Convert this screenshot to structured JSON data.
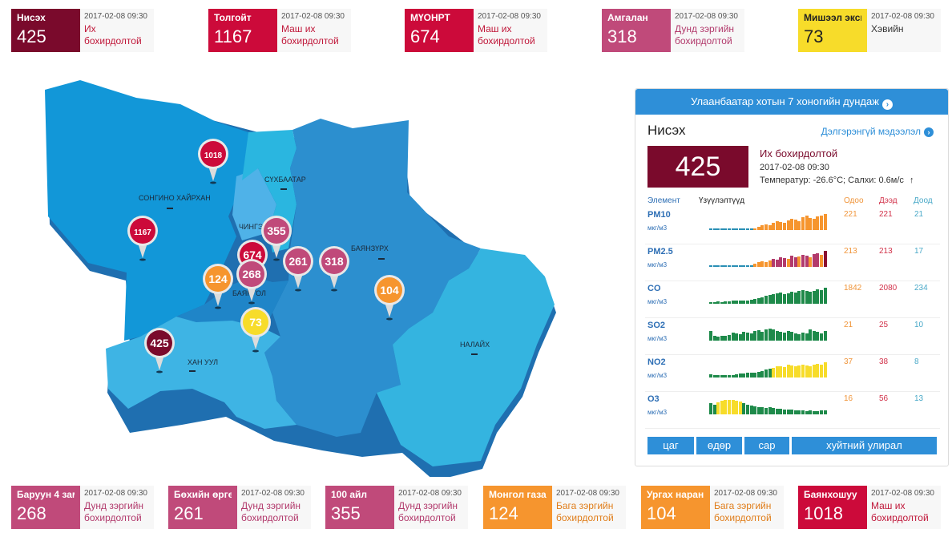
{
  "top_cards": [
    {
      "name": "Нисэх",
      "value": "425",
      "time": "2017-02-08 09:30",
      "status": "Их бохирдолтой",
      "color": "#7a0a2c",
      "status_color": "#c0183a"
    },
    {
      "name": "Толгойт",
      "value": "1167",
      "time": "2017-02-08 09:30",
      "status": "Маш их бохирдолтой",
      "color": "#cc0a3a",
      "status_color": "#c0183a"
    },
    {
      "name": "МҮОНРТ",
      "value": "674",
      "time": "2017-02-08 09:30",
      "status": "Маш их бохирдолтой",
      "color": "#cc0a3a",
      "status_color": "#c0183a"
    },
    {
      "name": "Амгалан",
      "value": "318",
      "time": "2017-02-08 09:30",
      "status": "Дунд зэргийн бохирдолтой",
      "color": "#c04a7a",
      "status_color": "#b23a6c"
    },
    {
      "name": "Мишээл экспо",
      "value": "73",
      "time": "2017-02-08 09:30",
      "status": "Хэвийн",
      "color": "#f7dc2a",
      "status_color": "#333333"
    }
  ],
  "bottom_cards": [
    {
      "name": "Баруун 4 зам",
      "value": "268",
      "time": "2017-02-08 09:30",
      "status": "Дунд зэргийн бохирдолтой",
      "color": "#c04a7a",
      "status_color": "#b23a6c"
    },
    {
      "name": "Бөхийн өргөө",
      "value": "261",
      "time": "2017-02-08 09:30",
      "status": "Дунд зэргийн бохирдолтой",
      "color": "#c04a7a",
      "status_color": "#b23a6c"
    },
    {
      "name": "100 айл",
      "value": "355",
      "time": "2017-02-08 09:30",
      "status": "Дунд зэргийн бохирдолтой",
      "color": "#c04a7a",
      "status_color": "#b23a6c"
    },
    {
      "name": "Монгол газар",
      "value": "124",
      "time": "2017-02-08 09:30",
      "status": "Бага зэргийн бохирдолтой",
      "color": "#f6952e",
      "status_color": "#e07d1a"
    },
    {
      "name": "Ургах наран",
      "value": "104",
      "time": "2017-02-08 09:30",
      "status": "Бага зэргийн бохирдолтой",
      "color": "#f6952e",
      "status_color": "#e07d1a"
    },
    {
      "name": "Баянхошуу",
      "value": "1018",
      "time": "2017-02-08 09:30",
      "status": "Маш их бохирдолтой",
      "color": "#cc0a3a",
      "status_color": "#c0183a"
    }
  ],
  "map": {
    "regions": [
      "СОНГИНО ХАЙРХАН",
      "СҮХБААТАР",
      "ЧИНГЭЛ",
      "БАЯНЗҮРХ",
      "БАЯНГОЛ",
      "ХАН УУЛ",
      "НАЛАЙХ"
    ],
    "pins": [
      {
        "value": "1018",
        "color": "#cc0a3a"
      },
      {
        "value": "1167",
        "color": "#cc0a3a"
      },
      {
        "value": "674",
        "color": "#cc0a3a"
      },
      {
        "value": "355",
        "color": "#c04a7a"
      },
      {
        "value": "268",
        "color": "#c04a7a"
      },
      {
        "value": "124",
        "color": "#f6952e"
      },
      {
        "value": "261",
        "color": "#c04a7a"
      },
      {
        "value": "318",
        "color": "#c04a7a"
      },
      {
        "value": "104",
        "color": "#f6952e"
      },
      {
        "value": "73",
        "color": "#f7dc2a"
      },
      {
        "value": "425",
        "color": "#7a0a2c"
      }
    ]
  },
  "panel": {
    "header": "Улаанбаатар хотын 7 хоногийн дундаж",
    "header_icon": "chevron-right-circle-icon",
    "station": "Нисэх",
    "more_link": "Дэлгэрэнгүй мэдээлэл",
    "aqi": "425",
    "status": "Их бохирдолтой",
    "time": "2017-02-08 09:30",
    "weather": "Температур: -26.6°C; Салхи: 0.6м/с",
    "wind_icon": "wind-direction-arrow-icon",
    "columns": {
      "element": "Элемент",
      "trend": "Үзүүлэлтүүд",
      "now": "Одоо",
      "max": "Дээд",
      "min": "Доод"
    },
    "rows": [
      {
        "el": "PM10",
        "unit": "мкг/м3",
        "now": "221",
        "max": "221",
        "min": "21",
        "bars": [
          0.08,
          0.08,
          0.08,
          0.08,
          0.08,
          0.08,
          0.08,
          0.08,
          0.08,
          0.08,
          0.08,
          0.08,
          0.1,
          0.2,
          0.3,
          0.35,
          0.3,
          0.45,
          0.55,
          0.5,
          0.45,
          0.6,
          0.7,
          0.65,
          0.55,
          0.8,
          0.9,
          0.75,
          0.7,
          0.85,
          0.9,
          1.0
        ],
        "colors": [
          "#2a8fb5",
          "#2a8fb5",
          "#2a8fb5",
          "#2a8fb5",
          "#2a8fb5",
          "#2a8fb5",
          "#2a8fb5",
          "#2a8fb5",
          "#2a8fb5",
          "#2a8fb5",
          "#2a8fb5",
          "#2a8fb5",
          "#f6952e",
          "#f6952e",
          "#f6952e",
          "#f6952e",
          "#f6952e",
          "#f6952e",
          "#f6952e",
          "#f6952e",
          "#f6952e",
          "#f6952e",
          "#f6952e",
          "#f6952e",
          "#f6952e",
          "#f6952e",
          "#f6952e",
          "#f6952e",
          "#f6952e",
          "#f6952e",
          "#f6952e",
          "#f6952e"
        ]
      },
      {
        "el": "PM2.5",
        "unit": "мкг/м3",
        "now": "213",
        "max": "213",
        "min": "17",
        "bars": [
          0.08,
          0.08,
          0.08,
          0.08,
          0.08,
          0.08,
          0.08,
          0.08,
          0.08,
          0.08,
          0.08,
          0.08,
          0.2,
          0.3,
          0.35,
          0.3,
          0.4,
          0.5,
          0.45,
          0.6,
          0.55,
          0.5,
          0.7,
          0.6,
          0.65,
          0.75,
          0.7,
          0.6,
          0.8,
          0.85,
          0.75,
          1.0
        ],
        "colors": [
          "#2a8fb5",
          "#2a8fb5",
          "#2a8fb5",
          "#2a8fb5",
          "#2a8fb5",
          "#2a8fb5",
          "#2a8fb5",
          "#2a8fb5",
          "#2a8fb5",
          "#2a8fb5",
          "#2a8fb5",
          "#2a8fb5",
          "#f6952e",
          "#f6952e",
          "#f6952e",
          "#f6952e",
          "#f6952e",
          "#b23a6c",
          "#b23a6c",
          "#b23a6c",
          "#b23a6c",
          "#f6952e",
          "#b23a6c",
          "#b23a6c",
          "#f6952e",
          "#b23a6c",
          "#b23a6c",
          "#f6952e",
          "#b23a6c",
          "#b23a6c",
          "#f6952e",
          "#8a1030"
        ]
      },
      {
        "el": "CO",
        "unit": "мкг/м3",
        "now": "1842",
        "max": "2080",
        "min": "234",
        "bars": [
          0.1,
          0.12,
          0.15,
          0.12,
          0.15,
          0.15,
          0.18,
          0.2,
          0.2,
          0.2,
          0.22,
          0.25,
          0.3,
          0.35,
          0.4,
          0.5,
          0.55,
          0.6,
          0.65,
          0.7,
          0.6,
          0.65,
          0.75,
          0.7,
          0.8,
          0.85,
          0.8,
          0.75,
          0.8,
          0.9,
          0.85,
          1.0
        ],
        "colors": [
          "#1e8a4a",
          "#1e8a4a",
          "#1e8a4a",
          "#1e8a4a",
          "#1e8a4a",
          "#1e8a4a",
          "#1e8a4a",
          "#1e8a4a",
          "#1e8a4a",
          "#1e8a4a",
          "#1e8a4a",
          "#1e8a4a",
          "#1e8a4a",
          "#1e8a4a",
          "#1e8a4a",
          "#1e8a4a",
          "#1e8a4a",
          "#1e8a4a",
          "#1e8a4a",
          "#1e8a4a",
          "#1e8a4a",
          "#1e8a4a",
          "#1e8a4a",
          "#1e8a4a",
          "#1e8a4a",
          "#1e8a4a",
          "#1e8a4a",
          "#1e8a4a",
          "#1e8a4a",
          "#1e8a4a",
          "#1e8a4a",
          "#1e8a4a"
        ]
      },
      {
        "el": "SO2",
        "unit": "мкг/м3",
        "now": "21",
        "max": "25",
        "min": "10",
        "bars": [
          0.6,
          0.3,
          0.25,
          0.3,
          0.3,
          0.35,
          0.5,
          0.45,
          0.4,
          0.55,
          0.5,
          0.45,
          0.6,
          0.65,
          0.55,
          0.7,
          0.75,
          0.7,
          0.6,
          0.55,
          0.5,
          0.6,
          0.55,
          0.45,
          0.4,
          0.5,
          0.45,
          0.7,
          0.6,
          0.55,
          0.45,
          0.6
        ],
        "colors": [
          "#1e8a4a",
          "#1e8a4a",
          "#1e8a4a",
          "#1e8a4a",
          "#1e8a4a",
          "#1e8a4a",
          "#1e8a4a",
          "#1e8a4a",
          "#1e8a4a",
          "#1e8a4a",
          "#1e8a4a",
          "#1e8a4a",
          "#1e8a4a",
          "#1e8a4a",
          "#1e8a4a",
          "#1e8a4a",
          "#1e8a4a",
          "#1e8a4a",
          "#1e8a4a",
          "#1e8a4a",
          "#1e8a4a",
          "#1e8a4a",
          "#1e8a4a",
          "#1e8a4a",
          "#1e8a4a",
          "#1e8a4a",
          "#1e8a4a",
          "#1e8a4a",
          "#1e8a4a",
          "#1e8a4a",
          "#1e8a4a",
          "#1e8a4a"
        ]
      },
      {
        "el": "NO2",
        "unit": "мкг/м3",
        "now": "37",
        "max": "38",
        "min": "8",
        "bars": [
          0.2,
          0.15,
          0.15,
          0.15,
          0.15,
          0.15,
          0.15,
          0.2,
          0.25,
          0.25,
          0.3,
          0.3,
          0.3,
          0.35,
          0.4,
          0.5,
          0.55,
          0.6,
          0.7,
          0.7,
          0.65,
          0.8,
          0.75,
          0.7,
          0.75,
          0.8,
          0.75,
          0.7,
          0.8,
          0.85,
          0.8,
          0.95
        ],
        "colors": [
          "#1e8a4a",
          "#1e8a4a",
          "#1e8a4a",
          "#1e8a4a",
          "#1e8a4a",
          "#1e8a4a",
          "#1e8a4a",
          "#1e8a4a",
          "#1e8a4a",
          "#1e8a4a",
          "#1e8a4a",
          "#1e8a4a",
          "#1e8a4a",
          "#1e8a4a",
          "#1e8a4a",
          "#1e8a4a",
          "#1e8a4a",
          "#f7dc2a",
          "#f7dc2a",
          "#f7dc2a",
          "#f7dc2a",
          "#f7dc2a",
          "#f7dc2a",
          "#f7dc2a",
          "#f7dc2a",
          "#f7dc2a",
          "#f7dc2a",
          "#f7dc2a",
          "#f7dc2a",
          "#f7dc2a",
          "#f7dc2a",
          "#f7dc2a"
        ]
      },
      {
        "el": "O3",
        "unit": "мкг/м3",
        "now": "16",
        "max": "56",
        "min": "13",
        "bars": [
          0.7,
          0.6,
          0.75,
          0.85,
          0.9,
          0.9,
          0.9,
          0.85,
          0.8,
          0.7,
          0.6,
          0.55,
          0.5,
          0.45,
          0.45,
          0.4,
          0.45,
          0.4,
          0.35,
          0.35,
          0.3,
          0.3,
          0.3,
          0.25,
          0.25,
          0.25,
          0.2,
          0.25,
          0.2,
          0.2,
          0.25,
          0.25
        ],
        "colors": [
          "#1e8a4a",
          "#1e8a4a",
          "#f7dc2a",
          "#f7dc2a",
          "#f7dc2a",
          "#f7dc2a",
          "#f7dc2a",
          "#f7dc2a",
          "#f7dc2a",
          "#1e8a4a",
          "#1e8a4a",
          "#1e8a4a",
          "#1e8a4a",
          "#1e8a4a",
          "#1e8a4a",
          "#1e8a4a",
          "#1e8a4a",
          "#1e8a4a",
          "#1e8a4a",
          "#1e8a4a",
          "#1e8a4a",
          "#1e8a4a",
          "#1e8a4a",
          "#1e8a4a",
          "#1e8a4a",
          "#1e8a4a",
          "#1e8a4a",
          "#1e8a4a",
          "#1e8a4a",
          "#1e8a4a",
          "#1e8a4a",
          "#1e8a4a"
        ]
      }
    ],
    "buttons": [
      "цаг",
      "өдөр",
      "сар",
      "хуйтний улирал"
    ]
  }
}
